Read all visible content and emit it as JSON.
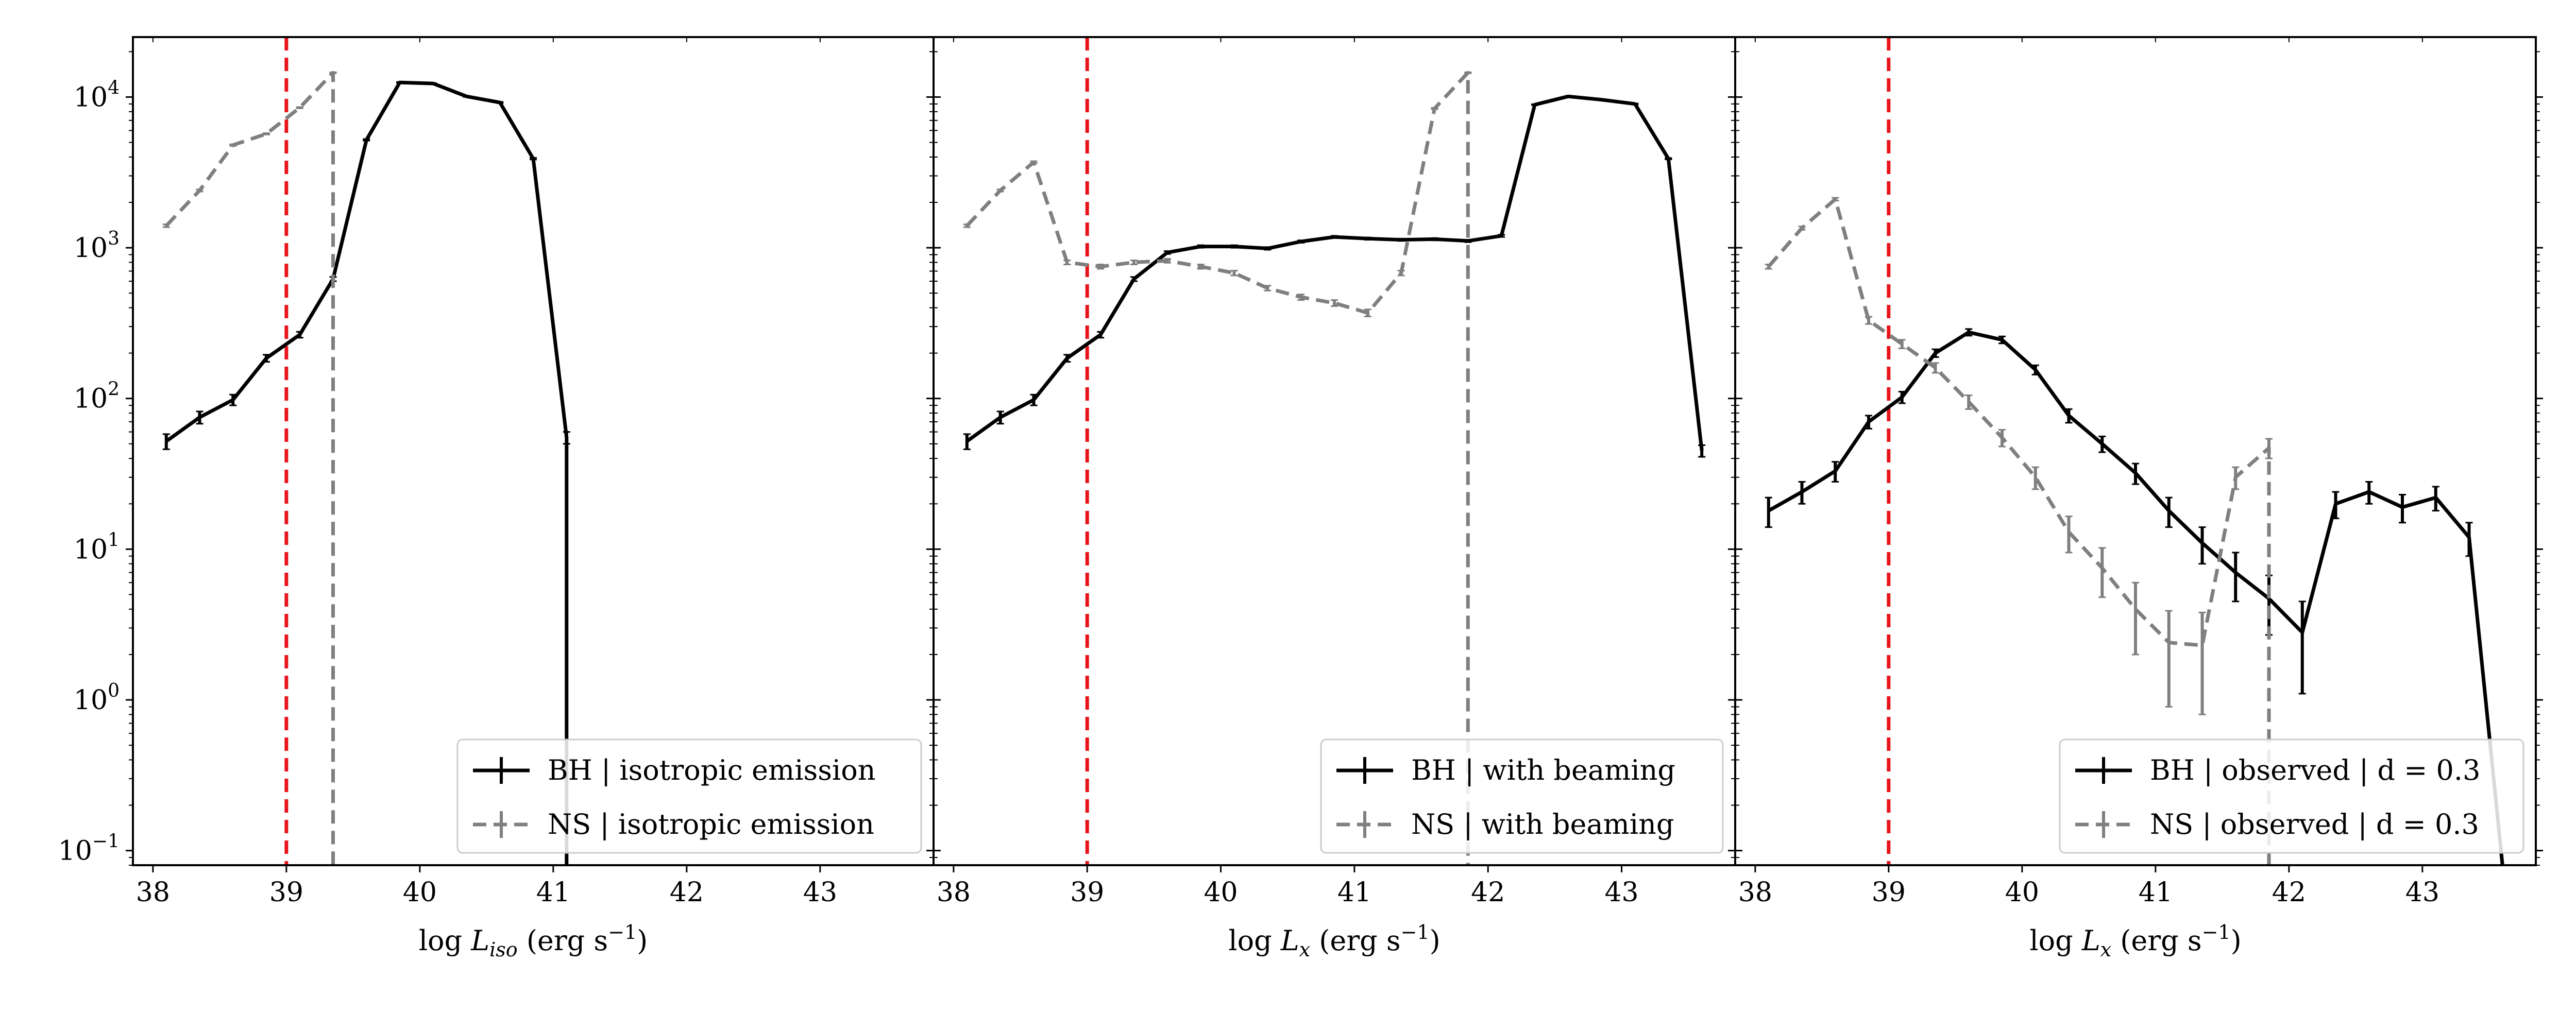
{
  "chart_data": [
    {
      "type": "line",
      "xlabel": "log L_iso (erg s⁻¹)",
      "xlabel_main": "log ",
      "xlabel_var": "L",
      "xlabel_sub": "iso",
      "xlabel_unit": " (erg s",
      "xlabel_sup": "−1",
      "xlabel_close": ")",
      "ylabel": "",
      "xlim": [
        37.85,
        43.85
      ],
      "ylim": [
        0.08,
        25000
      ],
      "yscale": "log",
      "xticks": [
        38,
        39,
        40,
        41,
        42,
        43
      ],
      "yticks": [
        0.1,
        1,
        10,
        100,
        1000,
        10000
      ],
      "yticklabels": [
        "10",
        "10",
        "10",
        "10",
        "10",
        "10"
      ],
      "ytickexps": [
        "−1",
        "0",
        "1",
        "2",
        "3",
        "4"
      ],
      "vline": {
        "x": 39,
        "color": "#e8141b"
      },
      "legend_position": "lower right",
      "series": [
        {
          "name": "BH | isotropic emission",
          "color": "#000000",
          "style": "solid",
          "x": [
            38.1,
            38.35,
            38.6,
            38.85,
            39.1,
            39.35,
            39.6,
            39.85,
            40.1,
            40.35,
            40.6,
            40.85,
            41.1,
            41.1
          ],
          "y": [
            52,
            75,
            98,
            185,
            265,
            620,
            5200,
            12500,
            12300,
            10100,
            9200,
            3900,
            55,
            0.08
          ],
          "err": [
            6,
            7,
            8,
            10,
            12,
            20,
            60,
            90,
            90,
            80,
            80,
            50,
            5,
            0
          ]
        },
        {
          "name": "NS | isotropic emission",
          "color": "#7f7f7f",
          "style": "dashed",
          "x": [
            38.1,
            38.35,
            38.6,
            38.85,
            39.1,
            39.35,
            39.35
          ],
          "y": [
            1400,
            2400,
            4800,
            5700,
            8500,
            14500,
            0.08
          ],
          "err": [
            30,
            40,
            60,
            60,
            80,
            100,
            0
          ]
        }
      ]
    },
    {
      "type": "line",
      "xlabel": "log L_x (erg s⁻¹)",
      "xlabel_main": "log ",
      "xlabel_var": "L",
      "xlabel_sub": "x",
      "xlabel_unit": " (erg s",
      "xlabel_sup": "−1",
      "xlabel_close": ")",
      "ylabel": "",
      "xlim": [
        37.85,
        43.85
      ],
      "ylim": [
        0.08,
        25000
      ],
      "yscale": "log",
      "xticks": [
        38,
        39,
        40,
        41,
        42,
        43
      ],
      "vline": {
        "x": 39,
        "color": "#e8141b"
      },
      "legend_position": "lower right",
      "series": [
        {
          "name": "BH | with beaming",
          "color": "#000000",
          "style": "solid",
          "x": [
            38.1,
            38.35,
            38.6,
            38.85,
            39.1,
            39.35,
            39.6,
            39.85,
            40.1,
            40.35,
            40.6,
            40.85,
            41.1,
            41.35,
            41.6,
            41.85,
            42.1,
            42.35,
            42.6,
            42.85,
            43.1,
            43.35,
            43.6
          ],
          "y": [
            52,
            75,
            98,
            185,
            265,
            620,
            930,
            1020,
            1020,
            990,
            1100,
            1180,
            1150,
            1130,
            1140,
            1110,
            1200,
            8900,
            10100,
            9600,
            9000,
            3900,
            45
          ],
          "err": [
            6,
            7,
            8,
            10,
            12,
            20,
            20,
            20,
            20,
            20,
            20,
            20,
            20,
            20,
            20,
            20,
            20,
            60,
            60,
            60,
            60,
            40,
            4
          ]
        },
        {
          "name": "NS | with beaming",
          "color": "#7f7f7f",
          "style": "dashed",
          "x": [
            38.1,
            38.35,
            38.6,
            38.85,
            39.1,
            39.35,
            39.6,
            39.85,
            40.1,
            40.35,
            40.6,
            40.85,
            41.1,
            41.35,
            41.6,
            41.85,
            41.85
          ],
          "y": [
            1400,
            2400,
            3700,
            800,
            750,
            800,
            820,
            750,
            680,
            540,
            470,
            430,
            370,
            680,
            8400,
            14500,
            0.08
          ],
          "err": [
            30,
            40,
            50,
            25,
            25,
            25,
            25,
            25,
            25,
            20,
            20,
            20,
            20,
            25,
            80,
            100,
            0
          ]
        }
      ]
    },
    {
      "type": "line",
      "xlabel": "log L_x (erg s⁻¹)",
      "xlabel_main": "log ",
      "xlabel_var": "L",
      "xlabel_sub": "x",
      "xlabel_unit": " (erg s",
      "xlabel_sup": "−1",
      "xlabel_close": ")",
      "ylabel": "",
      "xlim": [
        37.85,
        43.85
      ],
      "ylim": [
        0.08,
        25000
      ],
      "yscale": "log",
      "xticks": [
        38,
        39,
        40,
        41,
        42,
        43
      ],
      "vline": {
        "x": 39,
        "color": "#e8141b"
      },
      "legend_position": "lower right",
      "series": [
        {
          "name": "BH | observed | d = 0.3",
          "color": "#000000",
          "style": "solid",
          "x": [
            38.1,
            38.35,
            38.6,
            38.85,
            39.1,
            39.35,
            39.6,
            39.85,
            40.1,
            40.35,
            40.6,
            40.85,
            41.1,
            41.35,
            41.6,
            41.85,
            42.1,
            42.35,
            42.6,
            42.85,
            43.1,
            43.35,
            43.6
          ],
          "y": [
            18,
            24,
            33,
            70,
            102,
            200,
            275,
            245,
            155,
            77,
            50,
            32,
            18,
            11,
            7,
            4.7,
            2.8,
            20,
            24,
            19,
            22,
            12,
            0.08
          ],
          "err": [
            4,
            4,
            5,
            7,
            9,
            12,
            14,
            13,
            11,
            8,
            6,
            5,
            4,
            3,
            2.5,
            2,
            1.7,
            4,
            4,
            4,
            4,
            3,
            0
          ]
        },
        {
          "name": "NS | observed | d = 0.3",
          "color": "#7f7f7f",
          "style": "dashed",
          "x": [
            38.1,
            38.35,
            38.6,
            38.85,
            39.1,
            39.35,
            39.6,
            39.85,
            40.1,
            40.35,
            40.6,
            40.85,
            41.1,
            41.35,
            41.6,
            41.85,
            41.85
          ],
          "y": [
            750,
            1350,
            2100,
            330,
            230,
            160,
            95,
            55,
            30,
            13,
            7.5,
            4,
            2.4,
            2.3,
            30,
            47,
            0.08
          ],
          "err": [
            25,
            35,
            45,
            18,
            15,
            12,
            10,
            7,
            5,
            3.5,
            2.7,
            2,
            1.5,
            1.5,
            5,
            7,
            0
          ]
        }
      ]
    }
  ]
}
